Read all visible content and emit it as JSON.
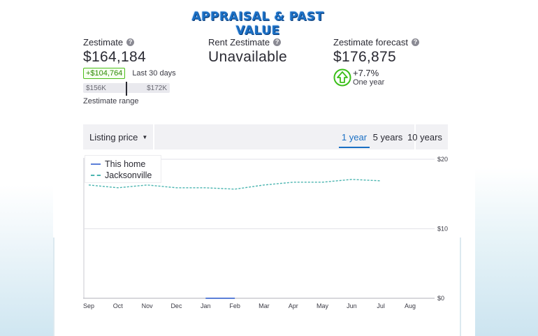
{
  "page_title": "APPRAISAL & PAST VALUE",
  "zestimate": {
    "label": "Zestimate",
    "value": "$164,184",
    "change": "+$104,764",
    "change_period": "Last 30 days",
    "range_low": "$156K",
    "range_high": "$172K",
    "range_caption": "Zestimate range"
  },
  "rent_zestimate": {
    "label": "Rent Zestimate",
    "value": "Unavailable"
  },
  "forecast": {
    "label": "Zestimate forecast",
    "value": "$176,875",
    "percent": "+7.7%",
    "period": "One year",
    "icon": "up-arrow-icon",
    "accent_color": "#3cbf1a"
  },
  "toolbar": {
    "select_label": "Listing price",
    "tabs": [
      "1 year",
      "5 years",
      "10 years"
    ],
    "active_tab": "1 year"
  },
  "colors": {
    "accent": "#1a6fc4",
    "this_home_line": "#5b7fd8",
    "jacksonville_line": "#4bb5b0"
  },
  "chart_data": {
    "type": "line",
    "categories": [
      "Sep",
      "Oct",
      "Nov",
      "Dec",
      "Jan",
      "Feb",
      "Mar",
      "Apr",
      "May",
      "Jun",
      "Jul",
      "Aug"
    ],
    "y_ticks": [
      "$0",
      "$10",
      "$20"
    ],
    "ylim": [
      0,
      200
    ],
    "legend_placement": "top-left",
    "grid": true,
    "series": [
      {
        "name": "This home",
        "style": "solid",
        "x": [
          4,
          5
        ],
        "values": [
          0,
          0
        ]
      },
      {
        "name": "Jacksonville",
        "style": "dashed",
        "x": [
          0,
          0.5,
          1,
          1.5,
          2,
          2.5,
          3,
          3.5,
          4,
          4.5,
          5,
          5.5,
          6,
          6.5,
          7,
          7.5,
          8,
          8.5,
          9,
          9.5,
          10
        ],
        "values": [
          163,
          161,
          159,
          161,
          163,
          161,
          159,
          159,
          159,
          158,
          157,
          160,
          163,
          165,
          167,
          167,
          167,
          169,
          171,
          170,
          169
        ]
      }
    ]
  }
}
